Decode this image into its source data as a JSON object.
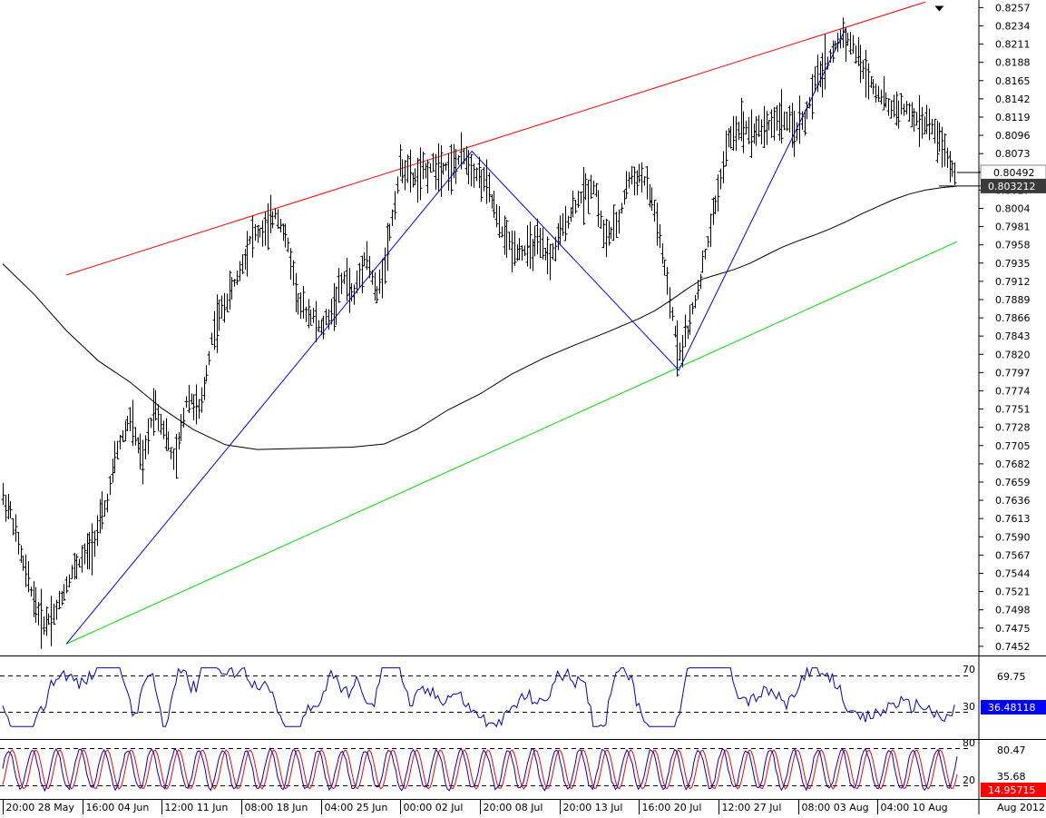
{
  "chart_data": {
    "type": "line",
    "main_panel": {
      "price_axis_ticks": [
        "0.8257",
        "0.8234",
        "0.8211",
        "0.8188",
        "0.8165",
        "0.8142",
        "0.8119",
        "0.8096",
        "0.8073",
        "0.8050",
        "0.8027",
        "0.8004",
        "0.7981",
        "0.7958",
        "0.7935",
        "0.7912",
        "0.7889",
        "0.7866",
        "0.7843",
        "0.7820",
        "0.7797",
        "0.7774",
        "0.7751",
        "0.7728",
        "0.7705",
        "0.7682",
        "0.7659",
        "0.7636",
        "0.7613",
        "0.7590",
        "0.7567",
        "0.7544",
        "0.7521",
        "0.7498",
        "0.7475",
        "0.7452"
      ],
      "ylim": [
        0.7445,
        0.8262
      ],
      "current_price_label": "0.80492",
      "ma_value_label": "0.803212",
      "ma_curve": [
        [
          0,
          0.7934
        ],
        [
          20,
          0.7895
        ],
        [
          40,
          0.785
        ],
        [
          60,
          0.7812
        ],
        [
          80,
          0.7785
        ],
        [
          100,
          0.7752
        ],
        [
          120,
          0.7725
        ],
        [
          140,
          0.7706
        ],
        [
          160,
          0.77
        ],
        [
          180,
          0.7701
        ],
        [
          200,
          0.7702
        ],
        [
          220,
          0.7703
        ],
        [
          240,
          0.7707
        ],
        [
          260,
          0.7725
        ],
        [
          280,
          0.775
        ],
        [
          300,
          0.777
        ],
        [
          320,
          0.7795
        ],
        [
          340,
          0.7815
        ],
        [
          360,
          0.7832
        ],
        [
          380,
          0.7848
        ],
        [
          400,
          0.7865
        ],
        [
          410,
          0.7875
        ],
        [
          420,
          0.7888
        ],
        [
          430,
          0.7902
        ],
        [
          440,
          0.7915
        ],
        [
          450,
          0.7921
        ],
        [
          460,
          0.7927
        ],
        [
          470,
          0.7935
        ],
        [
          480,
          0.7945
        ],
        [
          490,
          0.7955
        ],
        [
          500,
          0.7963
        ],
        [
          510,
          0.797
        ],
        [
          520,
          0.7978
        ],
        [
          530,
          0.7987
        ],
        [
          540,
          0.7997
        ],
        [
          550,
          0.8006
        ],
        [
          560,
          0.8015
        ],
        [
          570,
          0.8022
        ],
        [
          580,
          0.8027
        ],
        [
          590,
          0.803
        ],
        [
          600,
          0.8032
        ]
      ],
      "channel_upper": {
        "from": [
          40,
          0.792
        ],
        "to": [
          580,
          0.8264
        ]
      },
      "channel_lower": {
        "from": [
          40,
          0.7455
        ],
        "to": [
          600,
          0.7962
        ]
      },
      "zigzag": [
        [
          40,
          0.7455
        ],
        [
          295,
          0.8076
        ],
        [
          425,
          0.78
        ],
        [
          530,
          0.8231
        ]
      ],
      "arrow_marker": {
        "x": 582,
        "y": 0.8258
      },
      "bars": {
        "x_start": 0,
        "anchors": [
          [
            0,
            0.764
          ],
          [
            5,
            0.762
          ],
          [
            12,
            0.756
          ],
          [
            18,
            0.752
          ],
          [
            25,
            0.748
          ],
          [
            33,
            0.7495
          ],
          [
            43,
            0.7545
          ],
          [
            55,
            0.7575
          ],
          [
            65,
            0.763
          ],
          [
            72,
            0.77
          ],
          [
            80,
            0.774
          ],
          [
            88,
            0.768
          ],
          [
            95,
            0.776
          ],
          [
            102,
            0.772
          ],
          [
            108,
            0.768
          ],
          [
            116,
            0.777
          ],
          [
            124,
            0.7745
          ],
          [
            132,
            0.785
          ],
          [
            140,
            0.7885
          ],
          [
            148,
            0.792
          ],
          [
            156,
            0.797
          ],
          [
            165,
            0.7975
          ],
          [
            172,
            0.8
          ],
          [
            180,
            0.795
          ],
          [
            186,
            0.788
          ],
          [
            194,
            0.787
          ],
          [
            200,
            0.785
          ],
          [
            208,
            0.788
          ],
          [
            215,
            0.792
          ],
          [
            220,
            0.789
          ],
          [
            228,
            0.795
          ],
          [
            235,
            0.789
          ],
          [
            243,
            0.797
          ],
          [
            250,
            0.806
          ],
          [
            258,
            0.804
          ],
          [
            265,
            0.805
          ],
          [
            273,
            0.806
          ],
          [
            282,
            0.8055
          ],
          [
            290,
            0.807
          ],
          [
            297,
            0.805
          ],
          [
            305,
            0.803
          ],
          [
            312,
            0.798
          ],
          [
            320,
            0.7955
          ],
          [
            328,
            0.795
          ],
          [
            336,
            0.7958
          ],
          [
            344,
            0.794
          ],
          [
            352,
            0.7978
          ],
          [
            360,
            0.801
          ],
          [
            366,
            0.8025
          ],
          [
            372,
            0.8035
          ],
          [
            378,
            0.7965
          ],
          [
            386,
            0.798
          ],
          [
            393,
            0.804
          ],
          [
            402,
            0.8045
          ],
          [
            410,
            0.8
          ],
          [
            418,
            0.79
          ],
          [
            425,
            0.782
          ],
          [
            432,
            0.786
          ],
          [
            440,
            0.793
          ],
          [
            448,
            0.801
          ],
          [
            456,
            0.809
          ],
          [
            464,
            0.811
          ],
          [
            472,
            0.81
          ],
          [
            482,
            0.811
          ],
          [
            490,
            0.812
          ],
          [
            497,
            0.81
          ],
          [
            505,
            0.812
          ],
          [
            512,
            0.817
          ],
          [
            520,
            0.8195
          ],
          [
            528,
            0.8225
          ],
          [
            535,
            0.8205
          ],
          [
            542,
            0.8175
          ],
          [
            550,
            0.815
          ],
          [
            558,
            0.813
          ],
          [
            566,
            0.813
          ],
          [
            574,
            0.8115
          ],
          [
            582,
            0.811
          ],
          [
            590,
            0.8085
          ],
          [
            596,
            0.8055
          ],
          [
            600,
            0.8049
          ]
        ],
        "seed": 7
      }
    },
    "rsi_panel": {
      "level_labels": [
        "70",
        "30"
      ],
      "axis_label": "69.75",
      "value_label": "36.48118",
      "value_color": "#0000ff"
    },
    "stoch_panel": {
      "level_labels": [
        "80",
        "20"
      ],
      "axis_label_top": "80.47",
      "axis_label_mid": "35.68",
      "value_label": "14.95715",
      "value_color": "#ff0000"
    },
    "x_axis_ticks": [
      "20:00 28 May",
      "16:00 04 Jun",
      "12:00 11 Jun",
      "08:00 18 Jun",
      "04:00 25 Jun",
      "00:00 02 Jul",
      "20:00 08 Jul",
      "20:00 13 Jul",
      "16:00 20 Jul",
      "12:00 27 Jul",
      "08:00 03 Aug",
      "04:00 10 Aug"
    ],
    "x_axis_extra": "Aug 2012"
  }
}
